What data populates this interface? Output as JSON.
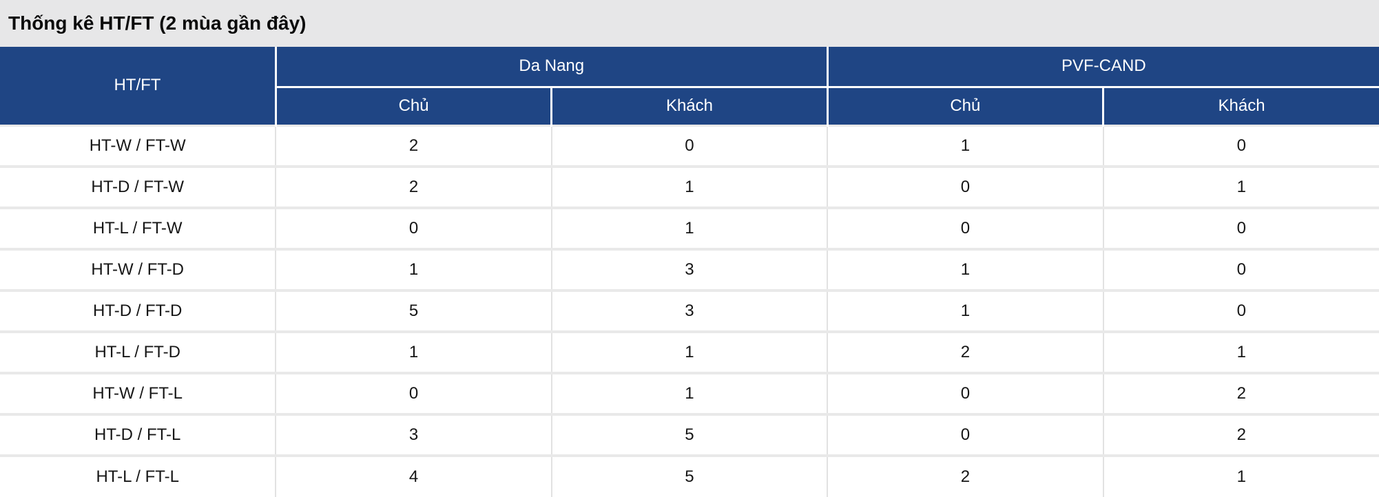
{
  "title": "Thống kê HT/FT (2 mùa gần đây)",
  "table": {
    "corner_header": "HT/FT",
    "groups": [
      {
        "label": "Da Nang",
        "sub": [
          "Chủ",
          "Khách"
        ]
      },
      {
        "label": "PVF-CAND",
        "sub": [
          "Chủ",
          "Khách"
        ]
      }
    ],
    "rows": [
      {
        "label": "HT-W / FT-W",
        "values": [
          "2",
          "0",
          "1",
          "0"
        ]
      },
      {
        "label": "HT-D / FT-W",
        "values": [
          "2",
          "1",
          "0",
          "1"
        ]
      },
      {
        "label": "HT-L / FT-W",
        "values": [
          "0",
          "1",
          "0",
          "0"
        ]
      },
      {
        "label": "HT-W / FT-D",
        "values": [
          "1",
          "3",
          "1",
          "0"
        ]
      },
      {
        "label": "HT-D / FT-D",
        "values": [
          "5",
          "3",
          "1",
          "0"
        ]
      },
      {
        "label": "HT-L / FT-D",
        "values": [
          "1",
          "1",
          "2",
          "1"
        ]
      },
      {
        "label": "HT-W / FT-L",
        "values": [
          "0",
          "1",
          "0",
          "2"
        ]
      },
      {
        "label": "HT-D / FT-L",
        "values": [
          "3",
          "5",
          "0",
          "2"
        ]
      },
      {
        "label": "HT-L / FT-L",
        "values": [
          "4",
          "5",
          "2",
          "1"
        ]
      }
    ]
  },
  "colors": {
    "header_bg": "#1f4584",
    "title_bg": "#e7e7e8",
    "row_separator": "#e9e9e9",
    "column_separator": "#e2e2e2",
    "header_text": "#ffffff",
    "body_text": "#161616"
  }
}
